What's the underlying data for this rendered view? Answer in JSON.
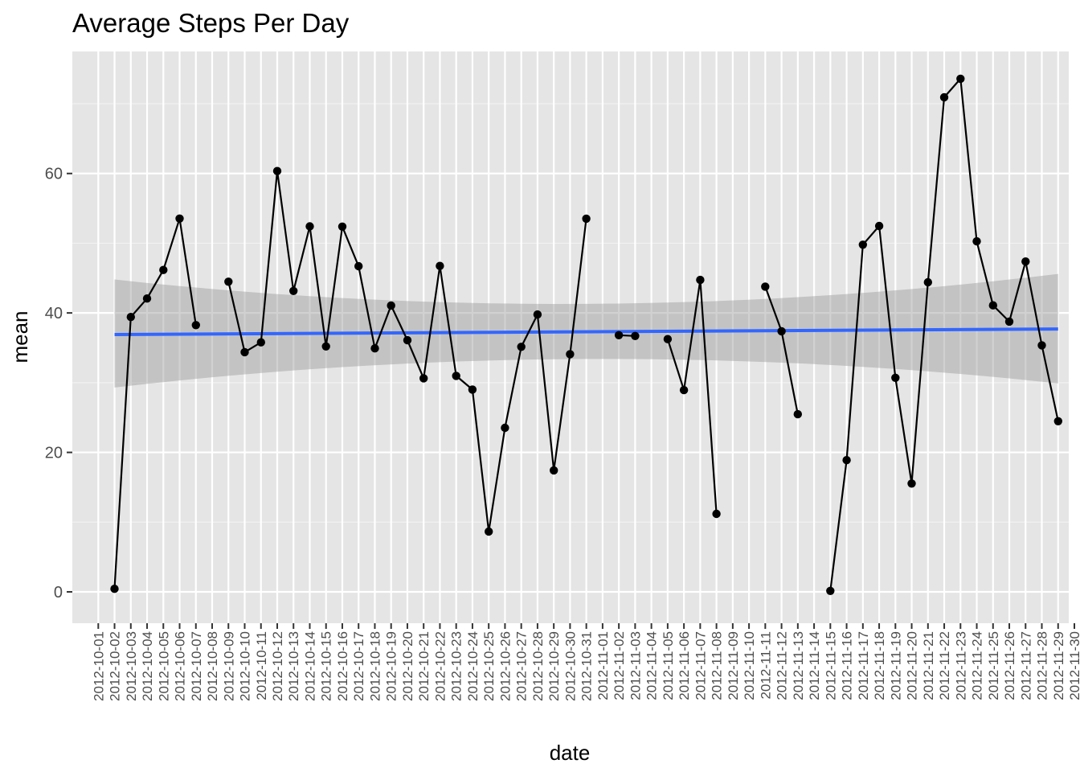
{
  "chart_data": {
    "type": "line",
    "title": "Average Steps Per Day",
    "xlabel": "date",
    "ylabel": "mean",
    "ylim": [
      -4.5,
      77.5
    ],
    "y_ticks": [
      0,
      20,
      40,
      60
    ],
    "grid": true,
    "x_tick_labels": [
      "2012-10-01",
      "2012-10-02",
      "2012-10-03",
      "2012-10-04",
      "2012-10-05",
      "2012-10-06",
      "2012-10-07",
      "2012-10-08",
      "2012-10-09",
      "2012-10-10",
      "2012-10-11",
      "2012-10-12",
      "2012-10-13",
      "2012-10-14",
      "2012-10-15",
      "2012-10-16",
      "2012-10-17",
      "2012-10-18",
      "2012-10-19",
      "2012-10-20",
      "2012-10-21",
      "2012-10-22",
      "2012-10-23",
      "2012-10-24",
      "2012-10-25",
      "2012-10-26",
      "2012-10-27",
      "2012-10-28",
      "2012-10-29",
      "2012-10-30",
      "2012-10-31",
      "2012-11-01",
      "2012-11-02",
      "2012-11-03",
      "2012-11-04",
      "2012-11-05",
      "2012-11-06",
      "2012-11-07",
      "2012-11-08",
      "2012-11-09",
      "2012-11-10",
      "2012-11-11",
      "2012-11-12",
      "2012-11-13",
      "2012-11-14",
      "2012-11-15",
      "2012-11-16",
      "2012-11-17",
      "2012-11-18",
      "2012-11-19",
      "2012-11-20",
      "2012-11-21",
      "2012-11-22",
      "2012-11-23",
      "2012-11-24",
      "2012-11-25",
      "2012-11-26",
      "2012-11-27",
      "2012-11-28",
      "2012-11-29",
      "2012-11-30"
    ],
    "series": [
      {
        "color": "#000000",
        "points": [
          {
            "x": "2012-10-02",
            "y": 0.44
          },
          {
            "x": "2012-10-03",
            "y": 39.42
          },
          {
            "x": "2012-10-04",
            "y": 42.07
          },
          {
            "x": "2012-10-05",
            "y": 46.16
          },
          {
            "x": "2012-10-06",
            "y": 53.54
          },
          {
            "x": "2012-10-07",
            "y": 38.25
          },
          {
            "x": "2012-10-09",
            "y": 44.48
          },
          {
            "x": "2012-10-10",
            "y": 34.38
          },
          {
            "x": "2012-10-11",
            "y": 35.78
          },
          {
            "x": "2012-10-12",
            "y": 60.35
          },
          {
            "x": "2012-10-13",
            "y": 43.15
          },
          {
            "x": "2012-10-14",
            "y": 52.42
          },
          {
            "x": "2012-10-15",
            "y": 35.2
          },
          {
            "x": "2012-10-16",
            "y": 52.38
          },
          {
            "x": "2012-10-17",
            "y": 46.71
          },
          {
            "x": "2012-10-18",
            "y": 34.92
          },
          {
            "x": "2012-10-19",
            "y": 41.07
          },
          {
            "x": "2012-10-20",
            "y": 36.09
          },
          {
            "x": "2012-10-21",
            "y": 30.63
          },
          {
            "x": "2012-10-22",
            "y": 46.74
          },
          {
            "x": "2012-10-23",
            "y": 30.97
          },
          {
            "x": "2012-10-24",
            "y": 29.01
          },
          {
            "x": "2012-10-25",
            "y": 8.65
          },
          {
            "x": "2012-10-26",
            "y": 23.53
          },
          {
            "x": "2012-10-27",
            "y": 35.14
          },
          {
            "x": "2012-10-28",
            "y": 39.78
          },
          {
            "x": "2012-10-29",
            "y": 17.42
          },
          {
            "x": "2012-10-30",
            "y": 34.09
          },
          {
            "x": "2012-10-31",
            "y": 53.52
          },
          {
            "x": "2012-11-02",
            "y": 36.81
          },
          {
            "x": "2012-11-03",
            "y": 36.7
          },
          {
            "x": "2012-11-05",
            "y": 36.25
          },
          {
            "x": "2012-11-06",
            "y": 28.94
          },
          {
            "x": "2012-11-07",
            "y": 44.73
          },
          {
            "x": "2012-11-08",
            "y": 11.18
          },
          {
            "x": "2012-11-11",
            "y": 43.78
          },
          {
            "x": "2012-11-12",
            "y": 37.38
          },
          {
            "x": "2012-11-13",
            "y": 25.47
          },
          {
            "x": "2012-11-15",
            "y": 0.14
          },
          {
            "x": "2012-11-16",
            "y": 18.89
          },
          {
            "x": "2012-11-17",
            "y": 49.79
          },
          {
            "x": "2012-11-18",
            "y": 52.47
          },
          {
            "x": "2012-11-19",
            "y": 30.7
          },
          {
            "x": "2012-11-20",
            "y": 15.53
          },
          {
            "x": "2012-11-21",
            "y": 44.4
          },
          {
            "x": "2012-11-22",
            "y": 70.93
          },
          {
            "x": "2012-11-23",
            "y": 73.59
          },
          {
            "x": "2012-11-24",
            "y": 50.27
          },
          {
            "x": "2012-11-25",
            "y": 41.09
          },
          {
            "x": "2012-11-26",
            "y": 38.76
          },
          {
            "x": "2012-11-27",
            "y": 47.38
          },
          {
            "x": "2012-11-28",
            "y": 35.36
          },
          {
            "x": "2012-11-29",
            "y": 24.47
          }
        ]
      }
    ],
    "trend": {
      "color": "#3366ff",
      "x": [
        "2012-10-02",
        "2012-11-29"
      ],
      "y": [
        36.9,
        37.7
      ],
      "ci_lower": [
        29.3,
        29.9
      ],
      "ci_upper": [
        44.8,
        45.6
      ],
      "ci_lower_mid": 33.4,
      "ci_upper_mid": 41.3
    }
  }
}
